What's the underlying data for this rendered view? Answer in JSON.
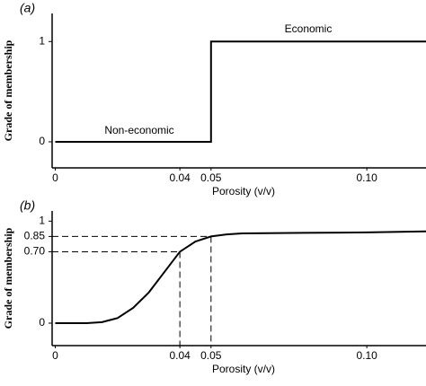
{
  "chart_data": [
    {
      "type": "line",
      "panel_label": "(a)",
      "x_label": "Porosity (v/v)",
      "y_label": "Grade of membership",
      "xlim": [
        -0.001,
        0.119
      ],
      "ylim": [
        -0.26,
        1.28
      ],
      "xticks": [
        0,
        0.04,
        0.05,
        {
          "value": 0.1,
          "label": "0.10"
        }
      ],
      "yticks": [
        0,
        1
      ],
      "series": [
        {
          "color": "#000000",
          "x": [
            0,
            0.05,
            0.05,
            0.119
          ],
          "values": [
            0,
            0,
            1,
            1
          ]
        }
      ],
      "annotations": [
        "Non-economic",
        "Economic"
      ]
    },
    {
      "type": "line",
      "panel_label": "(b)",
      "x_label": "Porosity (v/v)",
      "y_label": "Grade of membership",
      "xlim": [
        -0.001,
        0.119
      ],
      "ylim": [
        -0.22,
        1.1
      ],
      "xticks": [
        0,
        0.04,
        0.05,
        {
          "value": 0.1,
          "label": "0.10"
        }
      ],
      "yticks": [
        0,
        {
          "value": 0.7,
          "label": "0.70"
        },
        0.85,
        1
      ],
      "series": [
        {
          "color": "#000000",
          "x": [
            0,
            0.01,
            0.015,
            0.02,
            0.025,
            0.03,
            0.035,
            0.04,
            0.045,
            0.05,
            0.055,
            0.06,
            0.08,
            0.1,
            0.119
          ],
          "values": [
            0,
            0,
            0.01,
            0.05,
            0.15,
            0.3,
            0.5,
            0.7,
            0.8,
            0.85,
            0.87,
            0.88,
            0.885,
            0.89,
            0.9
          ]
        }
      ],
      "guides": [
        {
          "x": 0.04,
          "y": 0.7
        },
        {
          "x": 0.05,
          "y": 0.85
        }
      ]
    }
  ]
}
